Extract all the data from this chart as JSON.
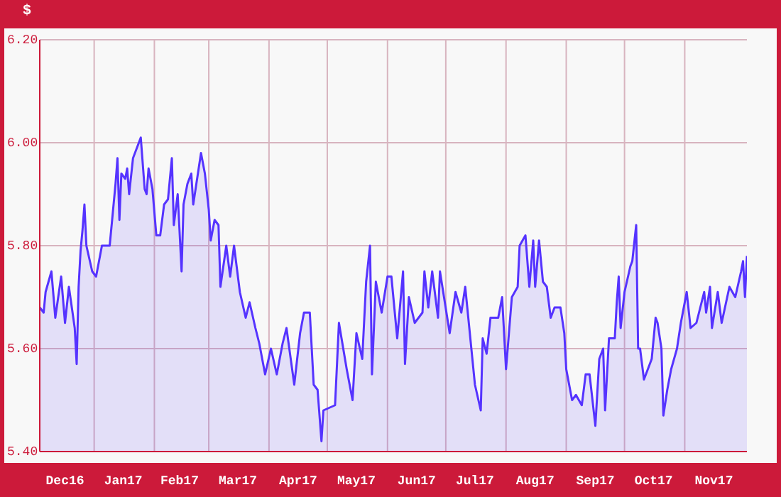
{
  "chart_data": {
    "type": "area",
    "ylabel": "$",
    "xlim": [
      "2016-12-04",
      "2017-12-03"
    ],
    "xticks": [
      {
        "value": "2016-12-17",
        "label": "Dec16"
      },
      {
        "value": "2017-01-01",
        "label": null
      },
      {
        "value": "2017-01-16",
        "label": "Jan17"
      },
      {
        "value": "2017-02-01",
        "label": null
      },
      {
        "value": "2017-02-14",
        "label": "Feb17"
      },
      {
        "value": "2017-03-01",
        "label": null
      },
      {
        "value": "2017-03-16",
        "label": "Mar17"
      },
      {
        "value": "2017-04-01",
        "label": null
      },
      {
        "value": "2017-04-16",
        "label": "Apr17"
      },
      {
        "value": "2017-05-01",
        "label": null
      },
      {
        "value": "2017-05-16",
        "label": "May17"
      },
      {
        "value": "2017-06-01",
        "label": null
      },
      {
        "value": "2017-06-16",
        "label": "Jun17"
      },
      {
        "value": "2017-07-01",
        "label": null
      },
      {
        "value": "2017-07-16",
        "label": "Jul17"
      },
      {
        "value": "2017-08-01",
        "label": null
      },
      {
        "value": "2017-08-16",
        "label": "Aug17"
      },
      {
        "value": "2017-09-01",
        "label": null
      },
      {
        "value": "2017-09-16",
        "label": "Sep17"
      },
      {
        "value": "2017-10-01",
        "label": null
      },
      {
        "value": "2017-10-16",
        "label": "Oct17"
      },
      {
        "value": "2017-11-01",
        "label": null
      },
      {
        "value": "2017-11-16",
        "label": "Nov17"
      }
    ],
    "ylim": [
      5.4,
      6.2
    ],
    "yticks": [
      {
        "value": 5.4,
        "label": "5.40"
      },
      {
        "value": 5.6,
        "label": "5.60"
      },
      {
        "value": 5.8,
        "label": "5.80"
      },
      {
        "value": 6.0,
        "label": "6.00"
      },
      {
        "value": 6.2,
        "label": "6.20"
      }
    ],
    "grid": true,
    "x": [
      "2016-12-04",
      "2016-12-06",
      "2016-12-07",
      "2016-12-10",
      "2016-12-12",
      "2016-12-15",
      "2016-12-17",
      "2016-12-19",
      "2016-12-22",
      "2016-12-23",
      "2016-12-24",
      "2016-12-25",
      "2016-12-26",
      "2016-12-27",
      "2016-12-28",
      "2016-12-31",
      "2017-01-02",
      "2017-01-05",
      "2017-01-09",
      "2017-01-11",
      "2017-01-12",
      "2017-01-13",
      "2017-01-14",
      "2017-01-15",
      "2017-01-17",
      "2017-01-18",
      "2017-01-19",
      "2017-01-21",
      "2017-01-24",
      "2017-01-25",
      "2017-01-27",
      "2017-01-28",
      "2017-01-29",
      "2017-01-31",
      "2017-02-02",
      "2017-02-04",
      "2017-02-06",
      "2017-02-08",
      "2017-02-10",
      "2017-02-11",
      "2017-02-13",
      "2017-02-15",
      "2017-02-16",
      "2017-02-18",
      "2017-02-20",
      "2017-02-21",
      "2017-02-25",
      "2017-02-27",
      "2017-03-01",
      "2017-03-02",
      "2017-03-04",
      "2017-03-06",
      "2017-03-07",
      "2017-03-10",
      "2017-03-12",
      "2017-03-14",
      "2017-03-17",
      "2017-03-20",
      "2017-03-22",
      "2017-03-25",
      "2017-03-27",
      "2017-03-30",
      "2017-04-02",
      "2017-04-05",
      "2017-04-08",
      "2017-04-10",
      "2017-04-14",
      "2017-04-17",
      "2017-04-19",
      "2017-04-22",
      "2017-04-24",
      "2017-04-26",
      "2017-04-28",
      "2017-04-29",
      "2017-05-05",
      "2017-05-07",
      "2017-05-11",
      "2017-05-14",
      "2017-05-16",
      "2017-05-19",
      "2017-05-21",
      "2017-05-23",
      "2017-05-24",
      "2017-05-26",
      "2017-05-29",
      "2017-06-01",
      "2017-06-03",
      "2017-06-06",
      "2017-06-09",
      "2017-06-10",
      "2017-06-12",
      "2017-06-15",
      "2017-06-19",
      "2017-06-20",
      "2017-06-22",
      "2017-06-24",
      "2017-06-27",
      "2017-06-28",
      "2017-07-03",
      "2017-07-06",
      "2017-07-09",
      "2017-07-11",
      "2017-07-16",
      "2017-07-19",
      "2017-07-20",
      "2017-07-22",
      "2017-07-24",
      "2017-07-28",
      "2017-07-30",
      "2017-08-01",
      "2017-08-04",
      "2017-08-07",
      "2017-08-08",
      "2017-08-11",
      "2017-08-13",
      "2017-08-15",
      "2017-08-16",
      "2017-08-18",
      "2017-08-20",
      "2017-08-22",
      "2017-08-24",
      "2017-08-26",
      "2017-08-29",
      "2017-08-31",
      "2017-09-01",
      "2017-09-04",
      "2017-09-06",
      "2017-09-09",
      "2017-09-11",
      "2017-09-13",
      "2017-09-16",
      "2017-09-18",
      "2017-09-20",
      "2017-09-21",
      "2017-09-23",
      "2017-09-26",
      "2017-09-27",
      "2017-09-28",
      "2017-09-29",
      "2017-10-01",
      "2017-10-04",
      "2017-10-05",
      "2017-10-07",
      "2017-10-08",
      "2017-10-09",
      "2017-10-11",
      "2017-10-14",
      "2017-10-15",
      "2017-10-17",
      "2017-10-18",
      "2017-10-20",
      "2017-10-21",
      "2017-10-23",
      "2017-10-25",
      "2017-10-28",
      "2017-10-30",
      "2017-11-02",
      "2017-11-04",
      "2017-11-07",
      "2017-11-11",
      "2017-11-12",
      "2017-11-14",
      "2017-11-15",
      "2017-11-18",
      "2017-11-20",
      "2017-11-24",
      "2017-11-27",
      "2017-11-30",
      "2017-12-01",
      "2017-12-02",
      "2017-12-03"
    ],
    "series": [
      {
        "color": "#5533ff",
        "values": [
          5.68,
          5.67,
          5.71,
          5.75,
          5.66,
          5.74,
          5.65,
          5.72,
          5.64,
          5.57,
          5.72,
          5.79,
          5.83,
          5.88,
          5.8,
          5.75,
          5.74,
          5.8,
          5.8,
          5.88,
          5.92,
          5.97,
          5.85,
          5.94,
          5.93,
          5.95,
          5.9,
          5.97,
          6.0,
          6.01,
          5.91,
          5.9,
          5.95,
          5.91,
          5.82,
          5.82,
          5.88,
          5.89,
          5.97,
          5.84,
          5.9,
          5.75,
          5.88,
          5.92,
          5.94,
          5.88,
          5.98,
          5.94,
          5.87,
          5.81,
          5.85,
          5.84,
          5.72,
          5.8,
          5.74,
          5.8,
          5.71,
          5.66,
          5.69,
          5.64,
          5.61,
          5.55,
          5.6,
          5.55,
          5.61,
          5.64,
          5.53,
          5.63,
          5.67,
          5.67,
          5.53,
          5.52,
          5.42,
          5.48,
          5.49,
          5.65,
          5.56,
          5.5,
          5.63,
          5.58,
          5.73,
          5.8,
          5.55,
          5.73,
          5.67,
          5.74,
          5.74,
          5.62,
          5.75,
          5.57,
          5.7,
          5.65,
          5.67,
          5.75,
          5.68,
          5.75,
          5.66,
          5.75,
          5.63,
          5.71,
          5.67,
          5.72,
          5.53,
          5.48,
          5.62,
          5.59,
          5.66,
          5.66,
          5.7,
          5.56,
          5.7,
          5.72,
          5.8,
          5.82,
          5.72,
          5.81,
          5.72,
          5.81,
          5.73,
          5.72,
          5.66,
          5.68,
          5.68,
          5.63,
          5.56,
          5.5,
          5.51,
          5.49,
          5.55,
          5.55,
          5.45,
          5.58,
          5.6,
          5.48,
          5.62,
          5.62,
          5.69,
          5.74,
          5.64,
          5.71,
          5.76,
          5.77,
          5.84,
          5.6,
          5.6,
          5.54,
          5.57,
          5.58,
          5.66,
          5.65,
          5.6,
          5.47,
          5.52,
          5.56,
          5.6,
          5.65,
          5.71,
          5.64,
          5.65,
          5.71,
          5.67,
          5.72,
          5.64,
          5.71,
          5.65,
          5.72,
          5.7,
          5.75,
          5.77,
          5.7,
          5.78
        ]
      }
    ]
  }
}
